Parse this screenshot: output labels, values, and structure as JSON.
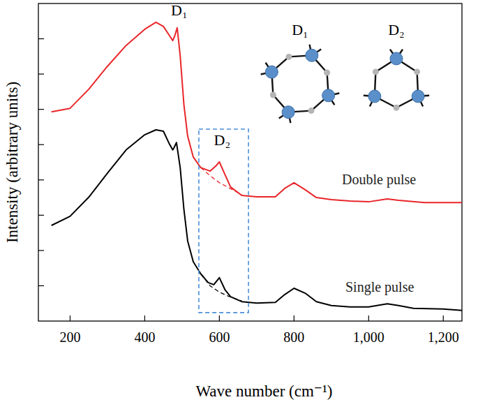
{
  "chart_data": {
    "type": "line",
    "x_label": "Wave number (cm⁻¹)",
    "y_label": "Intensity (arbitrary units)",
    "xlim": [
      115,
      1250
    ],
    "xticks": [
      200,
      400,
      600,
      800,
      {
        "value": 1000,
        "label": "1,000"
      },
      {
        "value": 1200,
        "label": "1,200"
      }
    ],
    "ylim": [
      0,
      9
    ],
    "yticks": [
      1,
      2,
      3,
      4,
      5,
      6,
      7,
      8
    ],
    "tick_labels": "x",
    "series": [
      {
        "name": "Double pulse",
        "color": "#e8262a",
        "line_style": "solid",
        "x": [
          150,
          200,
          250,
          300,
          350,
          400,
          430,
          450,
          465,
          475,
          480,
          487,
          495,
          505,
          515,
          530,
          550,
          575,
          590,
          600,
          615,
          630,
          660,
          700,
          750,
          775,
          800,
          830,
          860,
          900,
          950,
          1000,
          1050,
          1080,
          1150,
          1250
        ],
        "values": [
          5.93,
          6.03,
          6.57,
          7.22,
          7.81,
          8.27,
          8.47,
          8.35,
          8.11,
          7.95,
          8.07,
          8.31,
          7.52,
          6.13,
          5.24,
          4.65,
          4.35,
          4.25,
          4.39,
          4.51,
          4.15,
          3.8,
          3.56,
          3.52,
          3.52,
          3.76,
          3.92,
          3.72,
          3.5,
          3.44,
          3.4,
          3.38,
          3.46,
          3.42,
          3.36,
          3.36
        ]
      },
      {
        "name": "Single pulse",
        "color": "#000000",
        "line_style": "solid",
        "x": [
          150,
          200,
          250,
          300,
          350,
          400,
          430,
          450,
          465,
          475,
          478,
          485,
          495,
          505,
          515,
          530,
          550,
          570,
          585,
          600,
          615,
          630,
          660,
          700,
          750,
          775,
          800,
          830,
          860,
          900,
          950,
          1000,
          1050,
          1080,
          1120,
          1200,
          1250
        ],
        "values": [
          2.71,
          2.97,
          3.51,
          4.19,
          4.85,
          5.28,
          5.42,
          5.38,
          5.04,
          4.85,
          4.9,
          5.06,
          4.35,
          3.16,
          2.27,
          1.68,
          1.34,
          1.09,
          1.03,
          1.23,
          0.89,
          0.69,
          0.55,
          0.51,
          0.53,
          0.75,
          0.93,
          0.79,
          0.55,
          0.44,
          0.4,
          0.4,
          0.49,
          0.44,
          0.36,
          0.34,
          0.3
        ]
      }
    ],
    "baselines": [
      {
        "color": "#e8262a",
        "line_style": "dashed",
        "x": [
          550,
          575,
          600,
          625,
          660
        ],
        "values": [
          4.35,
          4.12,
          3.92,
          3.78,
          3.58
        ]
      },
      {
        "color": "#000000",
        "line_style": "dashed",
        "x": [
          550,
          575,
          600,
          625,
          660
        ],
        "values": [
          1.34,
          1.0,
          0.82,
          0.7,
          0.57
        ]
      }
    ],
    "highlight": {
      "color": "#4a90d9",
      "line_style": "dashed",
      "xlim": [
        545,
        678
      ],
      "ylim": [
        0.24,
        5.44
      ]
    },
    "annotations": [
      {
        "text": "D₁",
        "x": 485
      },
      {
        "text": "D₂",
        "x": 600
      },
      {
        "text": "D₁"
      },
      {
        "text": "D₂"
      }
    ]
  }
}
